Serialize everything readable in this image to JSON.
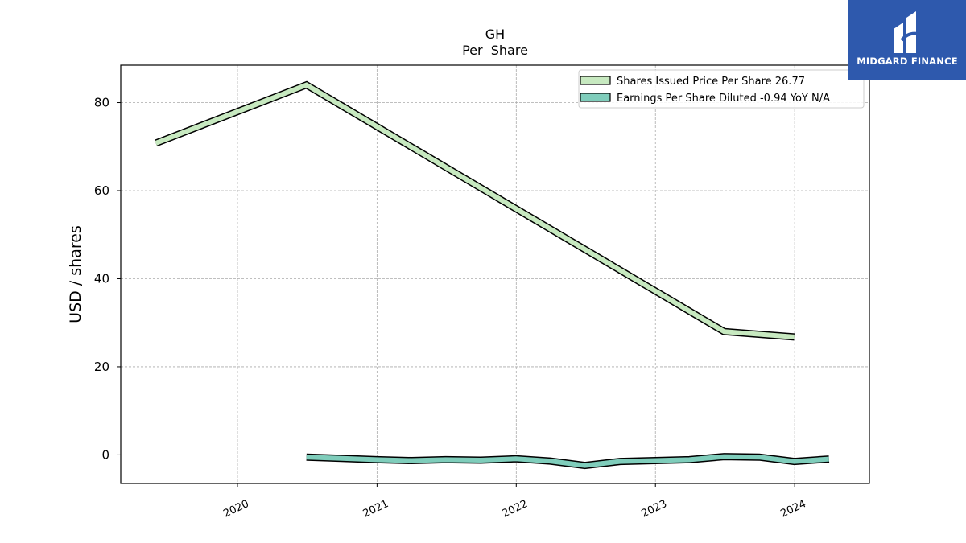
{
  "brand": {
    "name": "MIDGARD FINANCE",
    "color": "#2e59ad"
  },
  "chart_data": {
    "type": "line",
    "title": "GH",
    "subtitle": "Per  Share",
    "xlabel": "",
    "ylabel": "USD / shares",
    "xlim": [
      "2019-03-01",
      "2024-07-15"
    ],
    "ylim": [
      -6.5,
      88.5
    ],
    "x_ticks": [
      "2020",
      "2021",
      "2022",
      "2023",
      "2024"
    ],
    "y_ticks": [
      0,
      20,
      40,
      60,
      80
    ],
    "grid": true,
    "legend_position": "top-right",
    "series": [
      {
        "name": "Shares Issued Price Per Share  26.77",
        "color": "#c7e9c0",
        "points": [
          {
            "x": "2019-06-01",
            "y": 70.8
          },
          {
            "x": "2020-06-30",
            "y": 84.0
          },
          {
            "x": "2023-06-30",
            "y": 28.0
          },
          {
            "x": "2023-12-31",
            "y": 26.77
          }
        ]
      },
      {
        "name": "Earnings Per Share Diluted  -0.94 YoY N/A",
        "color": "#7fcdbb",
        "points": [
          {
            "x": "2020-06-30",
            "y": -0.5
          },
          {
            "x": "2020-09-30",
            "y": -0.8
          },
          {
            "x": "2020-12-31",
            "y": -1.1
          },
          {
            "x": "2021-03-31",
            "y": -1.3
          },
          {
            "x": "2021-06-30",
            "y": -1.1
          },
          {
            "x": "2021-09-30",
            "y": -1.2
          },
          {
            "x": "2021-12-31",
            "y": -0.9
          },
          {
            "x": "2022-03-31",
            "y": -1.4
          },
          {
            "x": "2022-06-30",
            "y": -2.4
          },
          {
            "x": "2022-09-30",
            "y": -1.5
          },
          {
            "x": "2022-12-31",
            "y": -1.3
          },
          {
            "x": "2023-03-31",
            "y": -1.1
          },
          {
            "x": "2023-06-30",
            "y": -0.4
          },
          {
            "x": "2023-09-30",
            "y": -0.5
          },
          {
            "x": "2023-12-31",
            "y": -1.5
          },
          {
            "x": "2024-03-31",
            "y": -0.94
          }
        ]
      }
    ]
  }
}
